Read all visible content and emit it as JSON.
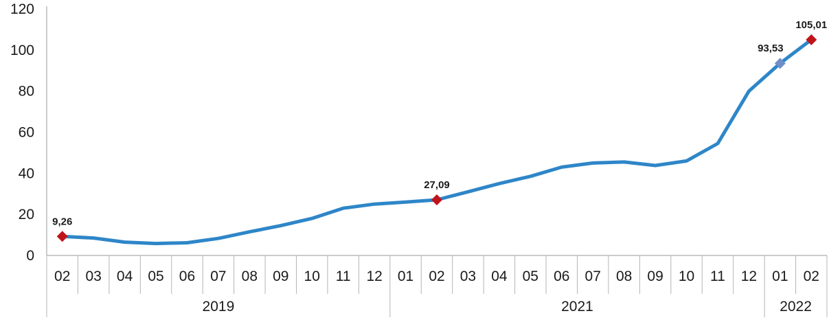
{
  "chart_data": {
    "type": "line",
    "title": "",
    "xlabel": "",
    "ylabel": "",
    "ylim": [
      0,
      120
    ],
    "yticks": [
      "0",
      "20",
      "40",
      "60",
      "80",
      "100",
      "120"
    ],
    "grid": false,
    "legend": "none",
    "x": [
      "02",
      "03",
      "04",
      "05",
      "06",
      "07",
      "08",
      "09",
      "10",
      "11",
      "12",
      "01",
      "02",
      "03",
      "04",
      "05",
      "06",
      "07",
      "08",
      "09",
      "10",
      "11",
      "12",
      "01",
      "02"
    ],
    "groups": [
      {
        "label": "2019",
        "count": 11
      },
      {
        "label": "2021",
        "count": 12
      },
      {
        "label": "2022",
        "count": 2
      }
    ],
    "series": [
      {
        "color": "#2e86c8",
        "values": [
          9.26,
          8.5,
          6.5,
          5.8,
          6.2,
          8.3,
          11.5,
          14.5,
          18.0,
          23.0,
          25.0,
          26.0,
          27.09,
          31.0,
          35.0,
          38.5,
          43.0,
          45.0,
          45.5,
          43.8,
          46.0,
          54.5,
          80.0,
          93.53,
          105.01
        ]
      }
    ],
    "annotations": [
      {
        "index": 0,
        "text": "9,26",
        "marker": "diamond",
        "color": "#c0141b"
      },
      {
        "index": 12,
        "text": "27,09",
        "marker": "diamond",
        "color": "#c0141b"
      },
      {
        "index": 23,
        "text": "93,53",
        "marker": "diamond",
        "color": "#6e8fca"
      },
      {
        "index": 24,
        "text": "105,01",
        "marker": "diamond",
        "color": "#c0141b"
      }
    ]
  }
}
